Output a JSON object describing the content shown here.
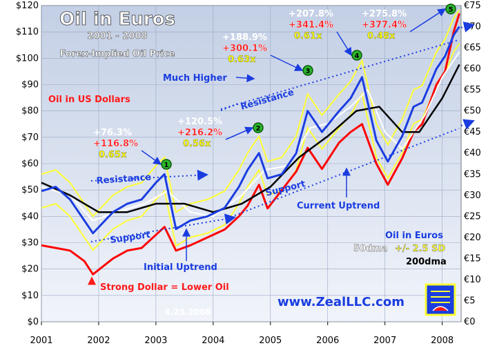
{
  "header": {
    "title": "Oil in Euros",
    "subtitle": "2001 - 2008",
    "caption": "Forex-Implied Oil Price",
    "date": "4.23.2008",
    "website": "www.ZealLLC.com"
  },
  "colors": {
    "background_gradient": [
      "#c7d2e6",
      "#eef2f8"
    ],
    "euro_oil": "#1a3de0",
    "usd_oil": "#ff0000",
    "band": "#ffff33",
    "dma50": "#ffffff",
    "dma200": "#000000",
    "annotation_blue": "#1a3de0",
    "annotation_red": "#ff1a1a",
    "annotation_yellow": "#ffff00",
    "marker_green": "#2bb52b"
  },
  "labels": {
    "oil_usd": "Oil in US Dollars",
    "oil_euros": "Oil in Euros",
    "dma50": "50dma",
    "sd_band": "+/- 2.5 SD",
    "dma200": "200dma",
    "resistance_left": "Resistance",
    "support_left": "Support",
    "resistance_right": "Resistance",
    "support_right": "Support",
    "much_higher": "Much Higher",
    "initial_uptrend": "Initial Uptrend",
    "current_uptrend": "Current Uptrend",
    "strong_dollar": "Strong Dollar = Lower Oil"
  },
  "callouts": [
    {
      "marker": "1",
      "euro_pct": "+76.3%",
      "usd_pct": "+116.8%",
      "ratio": "0.65x"
    },
    {
      "marker": "2",
      "euro_pct": "+120.5%",
      "usd_pct": "+216.2%",
      "ratio": "0.56x"
    },
    {
      "marker": "3",
      "euro_pct": "+188.9%",
      "usd_pct": "+300.1%",
      "ratio": "0.63x"
    },
    {
      "marker": "4",
      "euro_pct": "+207.8%",
      "usd_pct": "+341.4%",
      "ratio": "0.61x"
    },
    {
      "marker": "5",
      "euro_pct": "+275.8%",
      "usd_pct": "+377.4%",
      "ratio": "0.48x"
    }
  ],
  "chart_data": {
    "type": "line",
    "x_ticks": [
      "2001",
      "2002",
      "2003",
      "2004",
      "2005",
      "2006",
      "2007",
      "2008"
    ],
    "y_left_ticks": [
      "$0",
      "$10",
      "$20",
      "$30",
      "$40",
      "$50",
      "$60",
      "$70",
      "$80",
      "$90",
      "$100",
      "$110",
      "$120"
    ],
    "y_right_ticks": [
      "€0",
      "€5",
      "€10",
      "€15",
      "€20",
      "€25",
      "€30",
      "€35",
      "€40",
      "€45",
      "€50",
      "€55",
      "€60",
      "€65",
      "€70",
      "€75"
    ],
    "x_range": [
      2001.0,
      2008.33
    ],
    "y_left_range": [
      0,
      120
    ],
    "y_right_range": [
      0,
      75
    ],
    "grid": true,
    "series": [
      {
        "name": "Oil in Euros",
        "axis": "right",
        "x": [
          2001.0,
          2001.25,
          2001.5,
          2001.75,
          2001.9,
          2002.25,
          2002.5,
          2002.75,
          2003.0,
          2003.15,
          2003.35,
          2003.6,
          2003.9,
          2004.2,
          2004.45,
          2004.6,
          2004.8,
          2004.95,
          2005.2,
          2005.45,
          2005.65,
          2005.9,
          2006.2,
          2006.4,
          2006.6,
          2006.85,
          2007.05,
          2007.3,
          2007.5,
          2007.65,
          2007.9,
          2008.05,
          2008.2,
          2008.3
        ],
        "values": [
          31,
          32,
          29,
          24,
          21,
          26,
          28,
          29,
          33,
          35,
          22,
          24,
          25,
          27,
          32,
          36,
          40,
          34,
          35,
          40,
          50,
          45,
          50,
          53,
          58,
          43,
          38,
          44,
          51,
          52,
          60,
          63,
          68,
          70
        ]
      },
      {
        "name": "Oil in US Dollars",
        "axis": "left",
        "x": [
          2001.0,
          2001.25,
          2001.5,
          2001.75,
          2001.9,
          2002.25,
          2002.5,
          2002.75,
          2003.0,
          2003.15,
          2003.35,
          2003.6,
          2003.9,
          2004.2,
          2004.45,
          2004.6,
          2004.8,
          2004.95,
          2005.2,
          2005.45,
          2005.65,
          2005.9,
          2006.2,
          2006.4,
          2006.6,
          2006.85,
          2007.05,
          2007.3,
          2007.5,
          2007.65,
          2007.9,
          2008.05,
          2008.2,
          2008.3
        ],
        "values": [
          29,
          28,
          27,
          23,
          18,
          24,
          27,
          28,
          33,
          36,
          27,
          29,
          32,
          35,
          40,
          44,
          52,
          43,
          50,
          57,
          66,
          58,
          68,
          72,
          75,
          60,
          52,
          62,
          72,
          75,
          90,
          95,
          110,
          117
        ]
      },
      {
        "name": "50dma",
        "axis": "right",
        "x": [
          2001.0,
          2001.5,
          2001.9,
          2002.3,
          2002.8,
          2003.2,
          2003.6,
          2004.0,
          2004.5,
          2004.9,
          2005.3,
          2005.7,
          2006.0,
          2006.4,
          2006.7,
          2007.0,
          2007.3,
          2007.7,
          2008.0,
          2008.3
        ],
        "values": [
          32,
          30,
          24,
          26,
          28,
          31,
          26,
          25,
          30,
          36,
          37,
          46,
          47,
          51,
          55,
          45,
          41,
          49,
          58,
          64
        ]
      },
      {
        "name": "200dma",
        "axis": "right",
        "x": [
          2001.0,
          2001.5,
          2002.0,
          2002.5,
          2003.0,
          2003.5,
          2004.0,
          2004.5,
          2005.0,
          2005.5,
          2006.0,
          2006.5,
          2006.9,
          2007.3,
          2007.6,
          2008.0,
          2008.3
        ],
        "values": [
          33,
          30,
          26,
          26,
          28,
          28,
          26,
          28,
          32,
          39,
          44,
          50,
          51,
          45,
          45,
          53,
          61
        ]
      }
    ]
  }
}
